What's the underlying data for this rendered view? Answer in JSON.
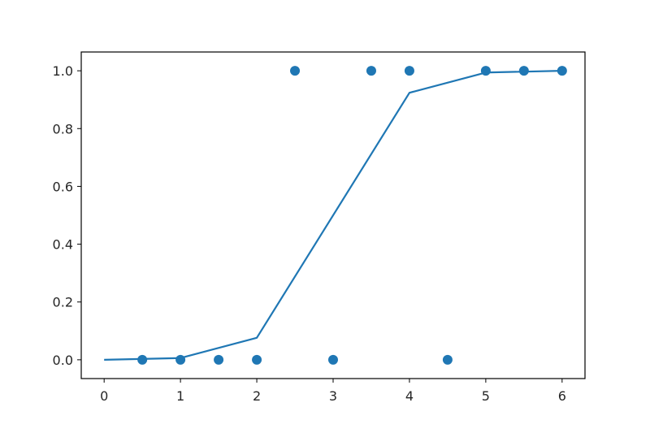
{
  "chart_data": {
    "type": "scatter",
    "title": "",
    "xlabel": "",
    "ylabel": "",
    "xlim": [
      -0.3,
      6.3
    ],
    "ylim": [
      -0.065,
      1.065
    ],
    "grid": false,
    "x_ticks": [
      0,
      1,
      2,
      3,
      4,
      5,
      6
    ],
    "x_tick_labels": [
      "0",
      "1",
      "2",
      "3",
      "4",
      "5",
      "6"
    ],
    "y_ticks": [
      0.0,
      0.2,
      0.4,
      0.6,
      0.8,
      1.0
    ],
    "y_tick_labels": [
      "0.0",
      "0.2",
      "0.4",
      "0.6",
      "0.8",
      "1.0"
    ],
    "color": "#1f77b4",
    "series": [
      {
        "type": "line",
        "x": [
          0,
          1,
          2,
          4,
          5,
          6
        ],
        "y": [
          0.0,
          0.006,
          0.076,
          0.924,
          0.994,
          1.0
        ]
      },
      {
        "type": "scatter",
        "x": [
          0.5,
          1.0,
          1.5,
          2.0,
          2.5,
          3.0,
          3.5,
          4.0,
          4.5,
          5.0,
          5.5,
          6.0
        ],
        "y": [
          0,
          0,
          0,
          0,
          1,
          0,
          1,
          1,
          0,
          1,
          1,
          1
        ]
      }
    ]
  }
}
